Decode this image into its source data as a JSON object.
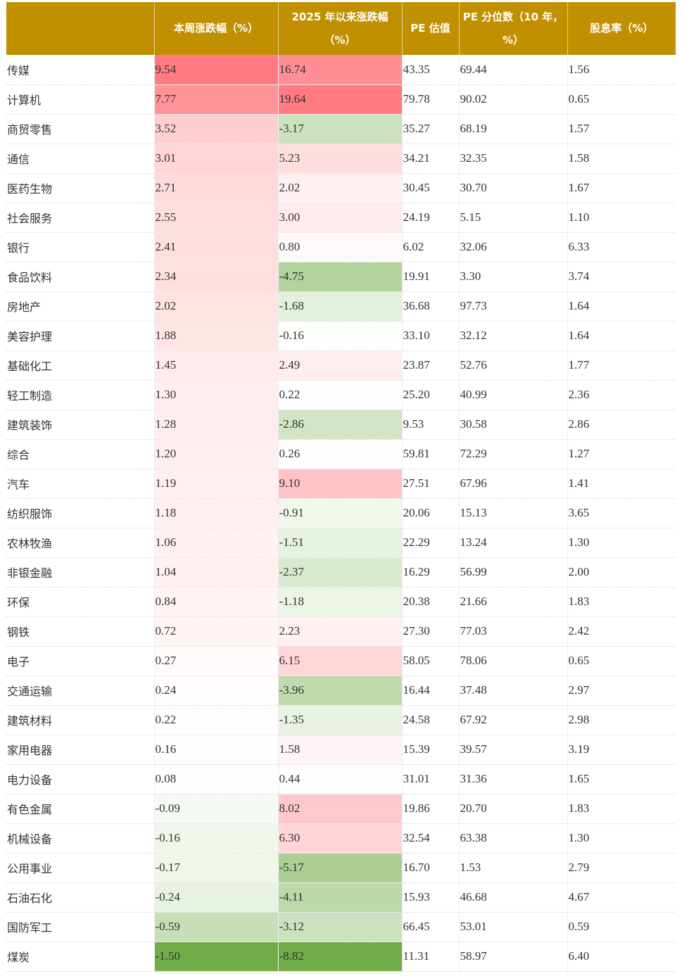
{
  "table": {
    "headers": [
      "",
      "本周涨跌幅（%）",
      "2025 年以来涨跌幅（%）",
      "PE 估值",
      "PE 分位数（10 年，%）",
      "股息率（%）"
    ],
    "rows": [
      {
        "industry": "传媒",
        "week_change": "9.54",
        "ytd_change": "16.74",
        "pe": "43.35",
        "pe_pct": "69.44",
        "dividend": "1.56"
      },
      {
        "industry": "计算机",
        "week_change": "7.77",
        "ytd_change": "19.64",
        "pe": "79.78",
        "pe_pct": "90.02",
        "dividend": "0.65"
      },
      {
        "industry": "商贸零售",
        "week_change": "3.52",
        "ytd_change": "-3.17",
        "pe": "35.27",
        "pe_pct": "68.19",
        "dividend": "1.57"
      },
      {
        "industry": "通信",
        "week_change": "3.01",
        "ytd_change": "5.23",
        "pe": "34.21",
        "pe_pct": "32.35",
        "dividend": "1.58"
      },
      {
        "industry": "医药生物",
        "week_change": "2.71",
        "ytd_change": "2.02",
        "pe": "30.45",
        "pe_pct": "30.70",
        "dividend": "1.67"
      },
      {
        "industry": "社会服务",
        "week_change": "2.55",
        "ytd_change": "3.00",
        "pe": "24.19",
        "pe_pct": "5.15",
        "dividend": "1.10"
      },
      {
        "industry": "银行",
        "week_change": "2.41",
        "ytd_change": "0.80",
        "pe": "6.02",
        "pe_pct": "32.06",
        "dividend": "6.33"
      },
      {
        "industry": "食品饮料",
        "week_change": "2.34",
        "ytd_change": "-4.75",
        "pe": "19.91",
        "pe_pct": "3.30",
        "dividend": "3.74"
      },
      {
        "industry": "房地产",
        "week_change": "2.02",
        "ytd_change": "-1.68",
        "pe": "36.68",
        "pe_pct": "97.73",
        "dividend": "1.64"
      },
      {
        "industry": "美容护理",
        "week_change": "1.88",
        "ytd_change": "-0.16",
        "pe": "33.10",
        "pe_pct": "32.12",
        "dividend": "1.64"
      },
      {
        "industry": "基础化工",
        "week_change": "1.45",
        "ytd_change": "2.49",
        "pe": "23.87",
        "pe_pct": "52.76",
        "dividend": "1.77"
      },
      {
        "industry": "轻工制造",
        "week_change": "1.30",
        "ytd_change": "0.22",
        "pe": "25.20",
        "pe_pct": "40.99",
        "dividend": "2.36"
      },
      {
        "industry": "建筑装饰",
        "week_change": "1.28",
        "ytd_change": "-2.86",
        "pe": "9.53",
        "pe_pct": "30.58",
        "dividend": "2.86"
      },
      {
        "industry": "综合",
        "week_change": "1.20",
        "ytd_change": "0.26",
        "pe": "59.81",
        "pe_pct": "72.29",
        "dividend": "1.27"
      },
      {
        "industry": "汽车",
        "week_change": "1.19",
        "ytd_change": "9.10",
        "pe": "27.51",
        "pe_pct": "67.96",
        "dividend": "1.41"
      },
      {
        "industry": "纺织服饰",
        "week_change": "1.18",
        "ytd_change": "-0.91",
        "pe": "20.06",
        "pe_pct": "15.13",
        "dividend": "3.65"
      },
      {
        "industry": "农林牧渔",
        "week_change": "1.06",
        "ytd_change": "-1.51",
        "pe": "22.29",
        "pe_pct": "13.24",
        "dividend": "1.30"
      },
      {
        "industry": "非银金融",
        "week_change": "1.04",
        "ytd_change": "-2.37",
        "pe": "16.29",
        "pe_pct": "56.99",
        "dividend": "2.00"
      },
      {
        "industry": "环保",
        "week_change": "0.84",
        "ytd_change": "-1.18",
        "pe": "20.38",
        "pe_pct": "21.66",
        "dividend": "1.83"
      },
      {
        "industry": "钢铁",
        "week_change": "0.72",
        "ytd_change": "2.23",
        "pe": "27.30",
        "pe_pct": "77.03",
        "dividend": "2.42"
      },
      {
        "industry": "电子",
        "week_change": "0.27",
        "ytd_change": "6.15",
        "pe": "58.05",
        "pe_pct": "78.06",
        "dividend": "0.65"
      },
      {
        "industry": "交通运输",
        "week_change": "0.24",
        "ytd_change": "-3.96",
        "pe": "16.44",
        "pe_pct": "37.48",
        "dividend": "2.97"
      },
      {
        "industry": "建筑材料",
        "week_change": "0.22",
        "ytd_change": "-1.35",
        "pe": "24.58",
        "pe_pct": "67.92",
        "dividend": "2.98"
      },
      {
        "industry": "家用电器",
        "week_change": "0.16",
        "ytd_change": "1.58",
        "pe": "15.39",
        "pe_pct": "39.57",
        "dividend": "3.19"
      },
      {
        "industry": "电力设备",
        "week_change": "0.08",
        "ytd_change": "0.44",
        "pe": "31.01",
        "pe_pct": "31.36",
        "dividend": "1.65"
      },
      {
        "industry": "有色金属",
        "week_change": "-0.09",
        "ytd_change": "8.02",
        "pe": "19.86",
        "pe_pct": "20.70",
        "dividend": "1.83"
      },
      {
        "industry": "机械设备",
        "week_change": "-0.16",
        "ytd_change": "6.30",
        "pe": "32.54",
        "pe_pct": "63.38",
        "dividend": "1.30"
      },
      {
        "industry": "公用事业",
        "week_change": "-0.17",
        "ytd_change": "-5.17",
        "pe": "16.70",
        "pe_pct": "1.53",
        "dividend": "2.79"
      },
      {
        "industry": "石油石化",
        "week_change": "-0.24",
        "ytd_change": "-4.11",
        "pe": "15.93",
        "pe_pct": "46.68",
        "dividend": "4.67"
      },
      {
        "industry": "国防军工",
        "week_change": "-0.59",
        "ytd_change": "-3.12",
        "pe": "66.45",
        "pe_pct": "53.01",
        "dividend": "0.59"
      },
      {
        "industry": "煤炭",
        "week_change": "-1.50",
        "ytd_change": "-8.82",
        "pe": "11.31",
        "pe_pct": "58.97",
        "dividend": "6.40"
      }
    ]
  },
  "colors": {
    "header_bg": "#c09000",
    "header_text": "#ffffff",
    "positive_max": "#ff7b81",
    "negative_max": "#70ad47",
    "neutral": "#ffffff"
  }
}
